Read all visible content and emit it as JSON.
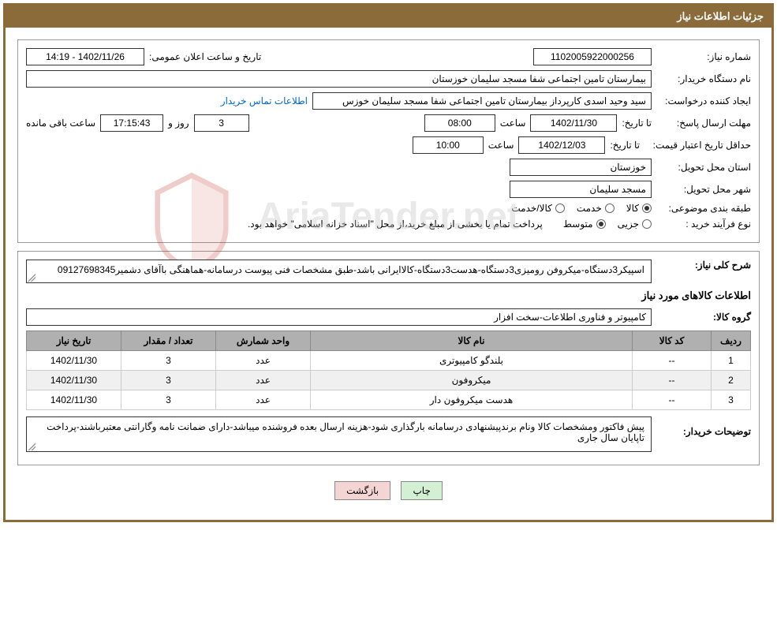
{
  "header": {
    "title": "جزئیات اطلاعات نیاز"
  },
  "info": {
    "need_number_label": "شماره نیاز:",
    "need_number": "1102005922000256",
    "announce_label": "تاریخ و ساعت اعلان عمومی:",
    "announce_value": "14:19 - 1402/11/26",
    "buyer_org_label": "نام دستگاه خریدار:",
    "buyer_org": "بیمارستان تامین اجتماعی شفا مسجد سلیمان خوزستان",
    "requester_label": "ایجاد کننده درخواست:",
    "requester": "سید وحید اسدی کارپرداز بیمارستان تامین اجتماعی شفا مسجد سلیمان خوزس",
    "contact_link": "اطلاعات تماس خریدار",
    "deadline_label": "مهلت ارسال پاسخ:",
    "to_label": "تا تاریخ:",
    "deadline_date": "1402/11/30",
    "time_label": "ساعت",
    "deadline_time": "08:00",
    "days_remaining": "3",
    "days_and": "روز و",
    "time_remaining": "17:15:43",
    "time_remaining_suffix": "ساعت باقی مانده",
    "validity_label": "حداقل تاریخ اعتبار قیمت:",
    "validity_date": "1402/12/03",
    "validity_time": "10:00",
    "province_label": "استان محل تحویل:",
    "province": "خوزستان",
    "city_label": "شهر محل تحویل:",
    "city": "مسجد سلیمان",
    "category_label": "طبقه بندی موضوعی:",
    "cat_goods": "کالا",
    "cat_service": "خدمت",
    "cat_goods_service": "کالا/خدمت",
    "process_label": "نوع فرآیند خرید :",
    "process_minor": "جزیی",
    "process_medium": "متوسط",
    "process_note": "پرداخت تمام یا بخشی از مبلغ خرید،از محل \"اسناد خزانه اسلامی\" خواهد بود."
  },
  "desc": {
    "overall_label": "شرح کلی نیاز:",
    "overall_text": "اسپیکر3دستگاه-میکروفن رومیزی3دستگاه-هدست3دستگاه-کالاایرانی باشد-طبق مشخصات فنی پیوست درسامانه-هماهنگی باآقای دشمیر09127698345",
    "goods_info_title": "اطلاعات کالاهای مورد نیاز",
    "group_label": "گروه کالا:",
    "group_value": "کامپیوتر و فناوری اطلاعات-سخت افزار"
  },
  "table": {
    "headers": {
      "row": "ردیف",
      "code": "کد کالا",
      "name": "نام کالا",
      "unit": "واحد شمارش",
      "qty": "تعداد / مقدار",
      "date": "تاریخ نیاز"
    },
    "rows": [
      {
        "row": "1",
        "code": "--",
        "name": "بلندگو کامپیوتری",
        "unit": "عدد",
        "qty": "3",
        "date": "1402/11/30"
      },
      {
        "row": "2",
        "code": "--",
        "name": "میکروفون",
        "unit": "عدد",
        "qty": "3",
        "date": "1402/11/30"
      },
      {
        "row": "3",
        "code": "--",
        "name": "هدست میکروفون دار",
        "unit": "عدد",
        "qty": "3",
        "date": "1402/11/30"
      }
    ]
  },
  "buyer_notes": {
    "label": "توضیحات خریدار:",
    "text": "پیش فاکتور ومشخصات کالا ونام برندپیشنهادی درسامانه بارگذاری شود-هزینه ارسال بعده فروشنده میباشد-دارای ضمانت نامه وگارانتی معتبرباشند-پرداخت تاپایان سال جاری"
  },
  "buttons": {
    "print": "چاپ",
    "back": "بازگشت"
  },
  "watermark": "AriaTender.net",
  "colors": {
    "header_bg": "#8b6b3a",
    "table_header_bg": "#b0b0b0",
    "btn_print_bg": "#d4f0d4",
    "btn_back_bg": "#f5d4d4"
  }
}
